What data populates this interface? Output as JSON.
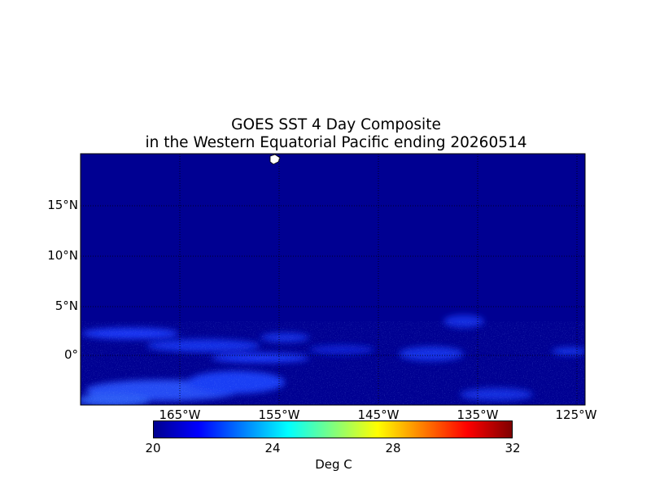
{
  "title_line1": "GOES SST 4 Day Composite",
  "title_line2": "in the Western Equatorial Pacific ending 20260514",
  "colormap": {
    "stops": [
      "#00008f",
      "#0000ff",
      "#007fff",
      "#00ffff",
      "#7fff7f",
      "#ffff00",
      "#ff7f00",
      "#ff0000",
      "#7f0000"
    ],
    "vmin": 20,
    "vmax": 32,
    "tick_labels": [
      "20",
      "24",
      "28",
      "32"
    ],
    "label": "Deg C"
  },
  "lat_labels": [
    "15°N",
    "10°N",
    "5°N",
    "0°"
  ],
  "lon_labels": [
    "165°W",
    "155°W",
    "145°W",
    "135°W",
    "125°W"
  ],
  "colors": {
    "ocean": "#000092",
    "land": "#ffffff",
    "grid": "#000000"
  }
}
